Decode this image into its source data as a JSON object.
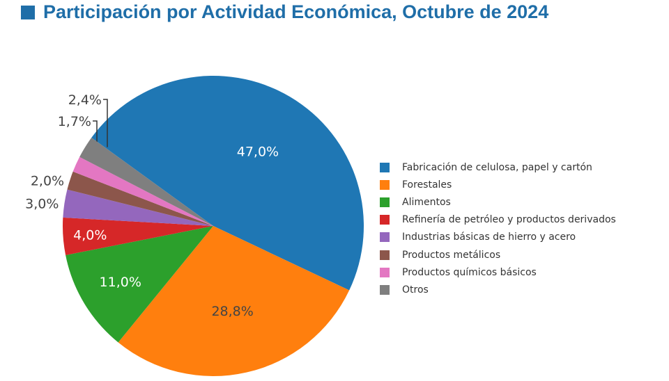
{
  "title": "Participación por Actividad Económica, Octubre de 2024",
  "title_square_color": "#1f6ea8",
  "chart_data": {
    "type": "pie",
    "title": "Participación por Actividad Económica, Octubre de 2024",
    "slices": [
      {
        "label": "Fabricación de celulosa, papel y cartón",
        "value": 47.0,
        "value_label": "47,0%",
        "color": "#1f77b4"
      },
      {
        "label": "Forestales",
        "value": 28.8,
        "value_label": "28,8%",
        "color": "#ff7f0e"
      },
      {
        "label": "Alimentos",
        "value": 11.0,
        "value_label": "11,0%",
        "color": "#2ca02c"
      },
      {
        "label": "Refinería de petróleo y productos derivados",
        "value": 4.0,
        "value_label": "4,0%",
        "color": "#d62728"
      },
      {
        "label": "Industrias básicas de hierro y acero",
        "value": 3.0,
        "value_label": "3,0%",
        "color": "#9467bd"
      },
      {
        "label": "Productos metálicos",
        "value": 2.0,
        "value_label": "2,0%",
        "color": "#8c564b"
      },
      {
        "label": "Productos químicos básicos",
        "value": 1.7,
        "value_label": "1,7%",
        "color": "#e377c2"
      },
      {
        "label": "Otros",
        "value": 2.4,
        "value_label": "2,4%",
        "color": "#7f7f7f"
      }
    ],
    "legend_position": "right"
  }
}
